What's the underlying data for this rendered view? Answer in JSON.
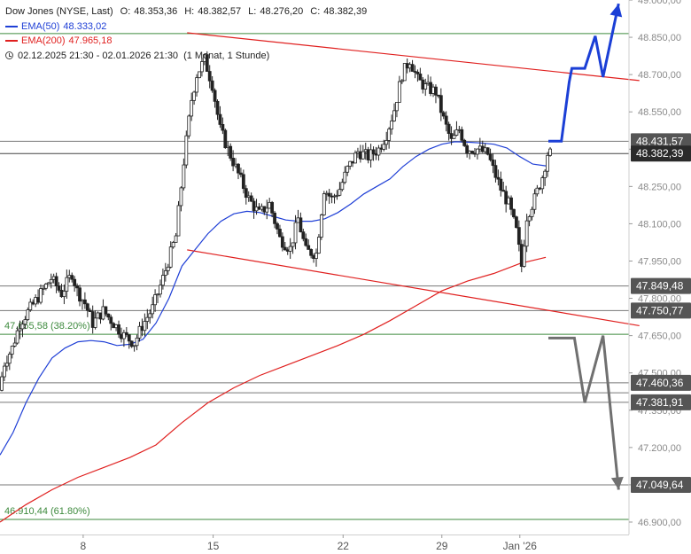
{
  "chart_data": {
    "type": "candlestick",
    "title": "Dow Jones (NYSE, Last)",
    "ohlc_summary": {
      "open_label": "O:",
      "open": "48.353,36",
      "high_label": "H:",
      "high": "48.382,57",
      "low_label": "L:",
      "low": "48.276,20",
      "close_label": "C:",
      "close": "48.382,39"
    },
    "indicators": [
      {
        "name": "EMA(50)",
        "value": "48.333,02",
        "color": "#1f3fd6"
      },
      {
        "name": "EMA(200)",
        "value": "47.965,18",
        "color": "#e0201f"
      }
    ],
    "period": "02.12.2025 21:30 - 02.01.2026 21:30",
    "interval": "(1 Monat, 1 Stunde)",
    "y_axis": {
      "min": 46850,
      "max": 49000,
      "ticks": [
        46900,
        47050,
        47200,
        47350,
        47500,
        47650,
        47800,
        47950,
        48100,
        48250,
        48400,
        48550,
        48700,
        48850,
        49000
      ],
      "tick_labels": [
        "46.900,00",
        "47.050,00",
        "47.200,00",
        "47.350,00",
        "47.500,00",
        "47.650,00",
        "47.800,00",
        "47.950,00",
        "48.100,00",
        "48.250,00",
        "48.400,00",
        "48.550,00",
        "48.700,00",
        "48.850,00",
        "49.000,00"
      ]
    },
    "x_axis": {
      "min": 0,
      "max": 24.2,
      "ticks": [
        {
          "x": 3.2,
          "label": "8"
        },
        {
          "x": 8.2,
          "label": "15"
        },
        {
          "x": 13.2,
          "label": "22"
        },
        {
          "x": 17.0,
          "label": "29"
        },
        {
          "x": 20.0,
          "label": "Jan '26"
        }
      ]
    },
    "level_lines": [
      {
        "value": 48431.57,
        "label": "48.431,57",
        "style": "gray",
        "highlight": false
      },
      {
        "value": 48382.39,
        "label": "48.382,39",
        "style": "dark",
        "highlight": true
      },
      {
        "value": 47849.48,
        "label": "47.849,48",
        "style": "gray",
        "highlight": false
      },
      {
        "value": 47750.77,
        "label": "47.750,77",
        "style": "gray",
        "highlight": false
      },
      {
        "value": 47460.36,
        "label": "47.460,36",
        "style": "gray",
        "highlight": false
      },
      {
        "value": 47420.0,
        "label": "",
        "style": "gray",
        "highlight": false
      },
      {
        "value": 47381.91,
        "label": "47.381,91",
        "style": "gray",
        "highlight": false
      },
      {
        "value": 47049.64,
        "label": "47.049,64",
        "style": "gray",
        "highlight": false
      }
    ],
    "fib_lines": [
      {
        "value": 48865,
        "label": "",
        "color": "#3d8a3d"
      },
      {
        "value": 47655.58,
        "label": "47.655,58 (38.20%)",
        "color": "#3d8a3d"
      },
      {
        "value": 46910.44,
        "label": "46.910,44 (61.80%)",
        "color": "#3d8a3d"
      }
    ],
    "trend_lines": [
      {
        "from": [
          7.2,
          48868
        ],
        "to": [
          24.6,
          48676
        ],
        "color": "#e0201f"
      },
      {
        "from": [
          7.2,
          47995
        ],
        "to": [
          24.6,
          47690
        ],
        "color": "#e0201f"
      }
    ],
    "projection_up": {
      "color": "#1b3fd6",
      "points": [
        [
          21.1,
          48432
        ],
        [
          21.6,
          48432
        ],
        [
          21.9,
          48670
        ],
        [
          22.0,
          48725
        ],
        [
          22.5,
          48725
        ],
        [
          22.9,
          48855
        ],
        [
          23.2,
          48690
        ],
        [
          23.8,
          48985
        ]
      ]
    },
    "projection_down": {
      "color": "#707070",
      "points": [
        [
          21.1,
          47640
        ],
        [
          22.1,
          47640
        ],
        [
          22.5,
          47380
        ],
        [
          23.2,
          47650
        ],
        [
          23.8,
          47030
        ]
      ]
    },
    "ema50": [
      [
        0.0,
        47170
      ],
      [
        0.5,
        47260
      ],
      [
        1.0,
        47380
      ],
      [
        1.5,
        47480
      ],
      [
        2.0,
        47560
      ],
      [
        2.5,
        47600
      ],
      [
        3.0,
        47625
      ],
      [
        3.5,
        47630
      ],
      [
        4.0,
        47625
      ],
      [
        4.5,
        47610
      ],
      [
        5.0,
        47615
      ],
      [
        5.5,
        47635
      ],
      [
        6.0,
        47700
      ],
      [
        6.5,
        47800
      ],
      [
        7.0,
        47930
      ],
      [
        7.5,
        47995
      ],
      [
        8.0,
        48060
      ],
      [
        8.5,
        48110
      ],
      [
        9.0,
        48140
      ],
      [
        9.5,
        48150
      ],
      [
        10.0,
        48145
      ],
      [
        10.5,
        48130
      ],
      [
        11.0,
        48115
      ],
      [
        11.5,
        48110
      ],
      [
        12.0,
        48110
      ],
      [
        12.5,
        48120
      ],
      [
        13.0,
        48145
      ],
      [
        13.5,
        48180
      ],
      [
        14.0,
        48220
      ],
      [
        14.5,
        48250
      ],
      [
        15.0,
        48280
      ],
      [
        15.5,
        48330
      ],
      [
        16.0,
        48370
      ],
      [
        16.5,
        48400
      ],
      [
        17.0,
        48420
      ],
      [
        17.5,
        48430
      ],
      [
        18.0,
        48428
      ],
      [
        18.5,
        48425
      ],
      [
        19.0,
        48420
      ],
      [
        19.5,
        48405
      ],
      [
        20.0,
        48370
      ],
      [
        20.5,
        48340
      ],
      [
        21.0,
        48333
      ]
    ],
    "ema200": [
      [
        0.0,
        46900
      ],
      [
        1.0,
        46970
      ],
      [
        2.0,
        47030
      ],
      [
        3.0,
        47080
      ],
      [
        4.0,
        47120
      ],
      [
        5.0,
        47160
      ],
      [
        6.0,
        47210
      ],
      [
        7.0,
        47300
      ],
      [
        8.0,
        47380
      ],
      [
        9.0,
        47440
      ],
      [
        10.0,
        47490
      ],
      [
        11.0,
        47530
      ],
      [
        12.0,
        47570
      ],
      [
        13.0,
        47610
      ],
      [
        14.0,
        47655
      ],
      [
        15.0,
        47710
      ],
      [
        16.0,
        47770
      ],
      [
        17.0,
        47830
      ],
      [
        18.0,
        47870
      ],
      [
        19.0,
        47900
      ],
      [
        20.0,
        47940
      ],
      [
        21.0,
        47965
      ]
    ],
    "price_path": [
      [
        0.0,
        47430
      ],
      [
        0.2,
        47540
      ],
      [
        0.5,
        47600
      ],
      [
        0.8,
        47700
      ],
      [
        1.2,
        47760
      ],
      [
        1.6,
        47820
      ],
      [
        2.0,
        47880
      ],
      [
        2.4,
        47820
      ],
      [
        2.8,
        47900
      ],
      [
        3.0,
        47830
      ],
      [
        3.3,
        47780
      ],
      [
        3.6,
        47700
      ],
      [
        4.0,
        47750
      ],
      [
        4.4,
        47700
      ],
      [
        4.8,
        47650
      ],
      [
        5.2,
        47620
      ],
      [
        5.5,
        47690
      ],
      [
        5.9,
        47760
      ],
      [
        6.3,
        47880
      ],
      [
        6.8,
        48050
      ],
      [
        7.1,
        48350
      ],
      [
        7.4,
        48600
      ],
      [
        7.6,
        48700
      ],
      [
        7.9,
        48760
      ],
      [
        8.2,
        48660
      ],
      [
        8.5,
        48480
      ],
      [
        8.8,
        48400
      ],
      [
        9.2,
        48300
      ],
      [
        9.6,
        48200
      ],
      [
        10.0,
        48140
      ],
      [
        10.4,
        48180
      ],
      [
        10.8,
        48040
      ],
      [
        11.2,
        48000
      ],
      [
        11.5,
        48120
      ],
      [
        11.8,
        47990
      ],
      [
        12.2,
        47980
      ],
      [
        12.5,
        48240
      ],
      [
        12.8,
        48200
      ],
      [
        13.1,
        48240
      ],
      [
        13.4,
        48320
      ],
      [
        13.8,
        48390
      ],
      [
        14.2,
        48370
      ],
      [
        14.6,
        48400
      ],
      [
        14.9,
        48460
      ],
      [
        15.2,
        48560
      ],
      [
        15.5,
        48700
      ],
      [
        15.8,
        48760
      ],
      [
        16.1,
        48680
      ],
      [
        16.4,
        48650
      ],
      [
        16.8,
        48630
      ],
      [
        17.1,
        48520
      ],
      [
        17.4,
        48430
      ],
      [
        17.7,
        48480
      ],
      [
        18.0,
        48400
      ],
      [
        18.4,
        48400
      ],
      [
        18.8,
        48380
      ],
      [
        19.0,
        48320
      ],
      [
        19.3,
        48240
      ],
      [
        19.6,
        48180
      ],
      [
        19.9,
        48070
      ],
      [
        20.1,
        47930
      ],
      [
        20.3,
        48130
      ],
      [
        20.6,
        48200
      ],
      [
        20.9,
        48290
      ],
      [
        21.1,
        48382
      ]
    ]
  }
}
